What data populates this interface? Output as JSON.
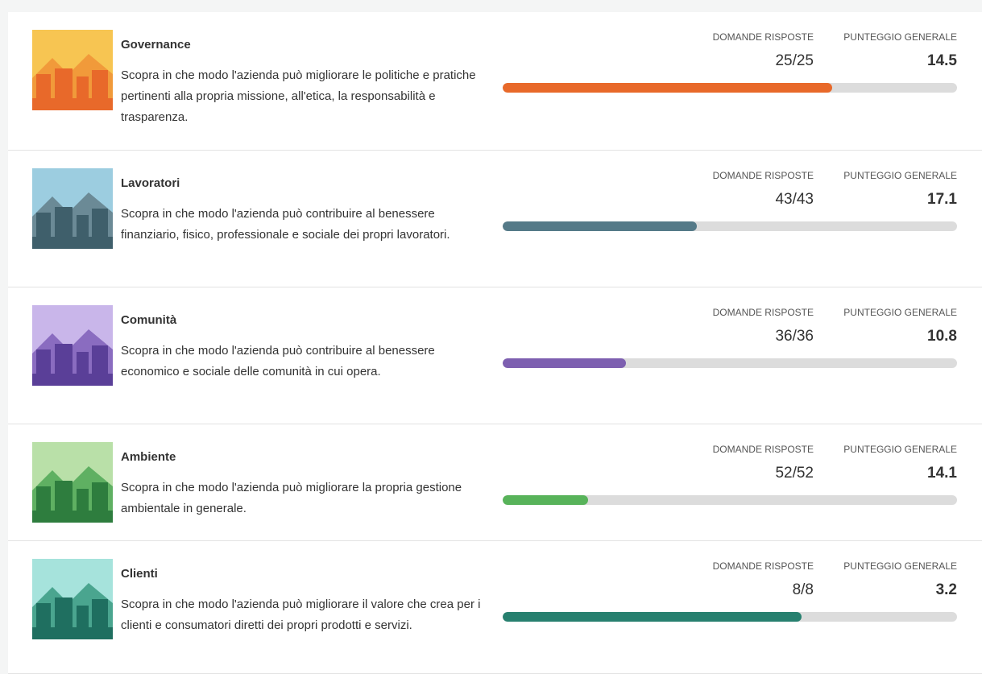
{
  "labels": {
    "answered": "DOMANDE RISPOSTE",
    "score": "PUNTEGGIO GENERALE"
  },
  "items": [
    {
      "title": "Governance",
      "description": "Scopra in che modo l'azienda può migliorare le politiche e pratiche pertinenti alla propria missione, all'etica, la responsabilità e trasparenza.",
      "answered": "25/25",
      "score": 14.5,
      "progress": 72.5,
      "color": "#e8692a"
    },
    {
      "title": "Lavoratori",
      "description": "Scopra in che modo l'azienda può contribuire al benessere finanziario, fisico, professionale e sociale dei propri lavoratori.",
      "answered": "43/43",
      "score": 17.1,
      "progress": 42.7,
      "color": "#557a88"
    },
    {
      "title": "Comunità",
      "description": "Scopra in che modo l'azienda può contribuire al benessere economico e sociale delle comunità in cui opera.",
      "answered": "36/36",
      "score": 10.8,
      "progress": 27.1,
      "color": "#7d5fb0"
    },
    {
      "title": "Ambiente",
      "description": "Scopra in che modo l'azienda può migliorare la propria gestione ambientale in generale.",
      "answered": "52/52",
      "score": 14.1,
      "progress": 18.8,
      "color": "#58b35a"
    },
    {
      "title": "Clienti",
      "description": "Scopra in che modo l'azienda può migliorare il valore che crea per i clienti e consumatori diretti dei propri prodotti e servizi.",
      "answered": "8/8",
      "score": 3.2,
      "progress": 65.8,
      "color": "#27806f"
    }
  ]
}
